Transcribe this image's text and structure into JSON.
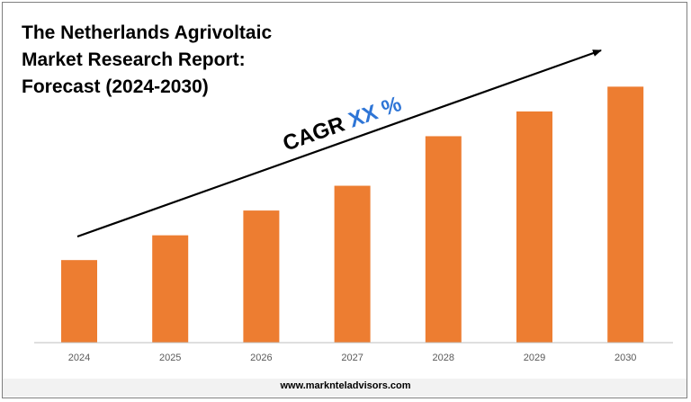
{
  "title_lines": [
    "The Netherlands Agrivoltaic",
    "Market Research Report:",
    "Forecast (2024-2030)"
  ],
  "cagr": {
    "prefix": "CAGR",
    "value": "XX %"
  },
  "footer": "www.marknteladvisors.com",
  "colors": {
    "bar": "#ed7d31",
    "cagr_value": "#2e75d6",
    "axis": "#bfbfbf"
  },
  "chart_data": {
    "type": "bar",
    "categories": [
      "2024",
      "2025",
      "2026",
      "2027",
      "2028",
      "2029",
      "2030"
    ],
    "values": [
      1.0,
      1.3,
      1.6,
      1.9,
      2.5,
      2.8,
      3.1
    ],
    "ylim": [
      0,
      3.3
    ],
    "title": "The Netherlands Agrivoltaic Market Research Report: Forecast (2024-2030)",
    "xlabel": "",
    "ylabel": "",
    "grid": false,
    "legend": "none"
  }
}
